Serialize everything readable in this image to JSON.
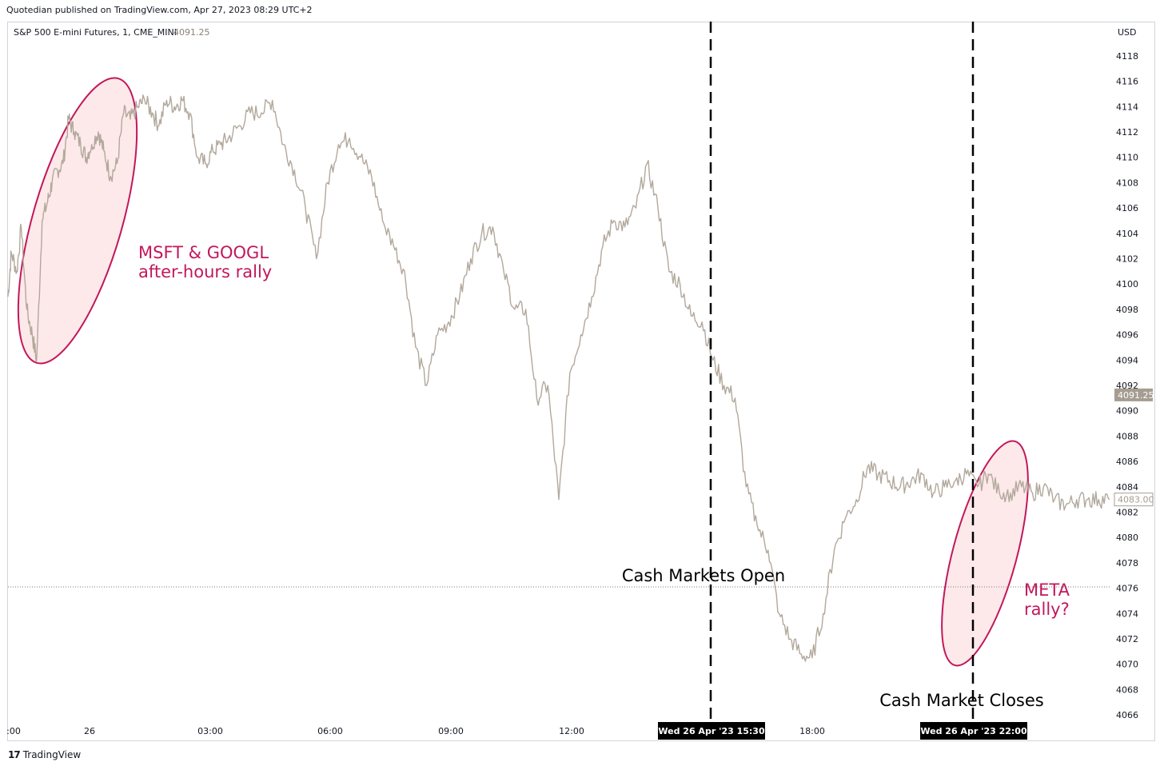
{
  "header": {
    "published_line": "Quotedian published on TradingView.com, Apr 27, 2023 08:29 UTC+2"
  },
  "footer": {
    "brand": "TradingView",
    "logo_glyph": "17"
  },
  "colors": {
    "price_line": "#b2a89c",
    "annotation_red": "#c2185b",
    "highlight_fill": "#fde9ea",
    "axis_text": "#131722",
    "last_price_bg": "#a59d91"
  },
  "chart_data": {
    "type": "line",
    "instrument": "S&P 500 E-mini Futures, 1, CME_MINI",
    "instrument_value": "4091.25",
    "currency": "USD",
    "x_tick_labels": [
      ":00",
      "26",
      "03:00",
      "06:00",
      "09:00",
      "12:00",
      "18:00"
    ],
    "ylim": [
      4065,
      4119
    ],
    "y_ticks": [
      4066,
      4068,
      4070,
      4072,
      4074,
      4076,
      4078,
      4080,
      4082,
      4084,
      4086,
      4088,
      4090,
      4092,
      4094,
      4096,
      4098,
      4100,
      4102,
      4104,
      4106,
      4108,
      4110,
      4112,
      4114,
      4116,
      4118
    ],
    "price_labels": {
      "last": "4091.25",
      "current": "4083.00"
    },
    "reference_line": 4076.1,
    "series": [
      {
        "x": [
          0.0,
          0.003,
          0.008,
          0.012,
          0.017,
          0.022,
          0.026,
          0.031,
          0.036,
          0.04,
          0.045,
          0.05,
          0.055,
          0.06,
          0.066,
          0.071,
          0.076,
          0.082,
          0.087,
          0.093,
          0.099,
          0.105,
          0.111,
          0.118,
          0.124,
          0.131,
          0.137,
          0.144,
          0.151,
          0.158,
          0.165,
          0.172,
          0.179,
          0.186,
          0.193,
          0.2,
          0.21,
          0.22,
          0.23,
          0.24,
          0.25,
          0.26,
          0.27,
          0.28,
          0.29,
          0.3,
          0.31,
          0.32,
          0.33,
          0.34,
          0.35,
          0.36,
          0.37,
          0.38,
          0.39,
          0.4,
          0.41,
          0.42,
          0.43,
          0.44,
          0.45,
          0.46,
          0.47,
          0.48,
          0.49,
          0.5,
          0.51,
          0.52,
          0.53,
          0.54,
          0.55,
          0.56,
          0.57,
          0.58,
          0.59,
          0.6,
          0.61,
          0.62,
          0.63,
          0.64,
          0.65,
          0.66,
          0.67,
          0.68,
          0.69,
          0.7,
          0.71,
          0.72,
          0.73,
          0.74,
          0.75,
          0.76,
          0.77,
          0.78,
          0.79,
          0.8,
          0.81,
          0.82,
          0.83,
          0.84,
          0.85,
          0.86,
          0.87,
          0.88,
          0.89,
          0.9,
          0.91,
          0.92,
          0.93,
          0.94,
          0.95,
          0.96,
          0.97,
          0.98,
          0.99,
          1.0
        ],
        "y": [
          4099,
          4102.5,
          4101,
          4104.5,
          4098,
          4096,
          4094,
          4105,
          4106.5,
          4108,
          4109,
          4109.5,
          4113,
          4112,
          4111,
          4110,
          4111,
          4112,
          4110.5,
          4108.5,
          4109.5,
          4113.5,
          4113,
          4114,
          4114.5,
          4113.5,
          4112.5,
          4114.5,
          4114,
          4114.5,
          4113.5,
          4110,
          4109.5,
          4110.5,
          4111,
          4111.5,
          4112.5,
          4113.5,
          4113.5,
          4114.5,
          4111,
          4109,
          4106,
          4102,
          4108,
          4111,
          4111.5,
          4110,
          4108.5,
          4105,
          4103,
          4101,
          4095,
          4092,
          4096,
          4097,
          4099,
          4102,
          4104,
          4104.5,
          4101,
          4098,
          4098,
          4091,
          4092,
          4083,
          4093,
          4096,
          4099,
          4103,
          4105,
          4104.5,
          4106,
          4109.5,
          4106,
          4101,
          4100,
          4097.5,
          4097,
          4094,
          4092,
          4091,
          4084,
          4081,
          4079,
          4074,
          4072,
          4070.8,
          4070.5,
          4074,
          4079,
          4081.5,
          4083,
          4085.5,
          4085,
          4084.5,
          4084,
          4084.5,
          4085,
          4083.5,
          4084,
          4084.5,
          4085,
          4084,
          4085,
          4083.5,
          4083.5,
          4084,
          4083.5,
          4084,
          4083,
          4082.5,
          4083,
          4083,
          4083,
          4083
        ]
      }
    ],
    "markers": [
      {
        "time_label": "Wed 26 Apr '23   15:30",
        "caption": "Cash Markets Open"
      },
      {
        "time_label": "Wed 26 Apr '23   22:00",
        "caption": "Cash Market Closes"
      }
    ],
    "annotations": [
      {
        "lines": [
          "MSFT & GOOGL",
          "after-hours rally"
        ]
      },
      {
        "lines": [
          "META",
          "rally?"
        ]
      }
    ]
  }
}
